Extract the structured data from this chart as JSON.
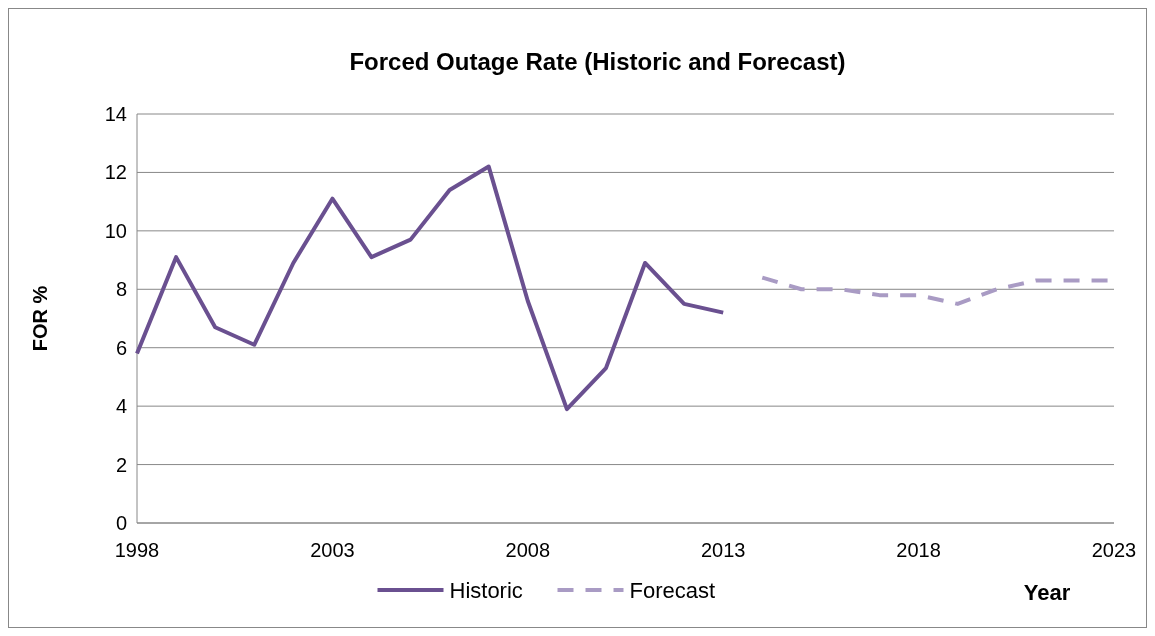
{
  "chart_data": {
    "type": "line",
    "title": "Forced Outage Rate (Historic and Forecast)",
    "xlabel": "Year",
    "ylabel": "FOR  %",
    "xlim": [
      1998,
      2023
    ],
    "xticks": [
      1998,
      2003,
      2008,
      2013,
      2018,
      2023
    ],
    "ylim": [
      0,
      14
    ],
    "yticks": [
      0,
      2,
      4,
      6,
      8,
      10,
      12,
      14
    ],
    "grid": "y",
    "legend": "bottom",
    "series": [
      {
        "name": "Historic",
        "color": "#6a5090",
        "line_style": "solid",
        "x": [
          1998,
          1999,
          2000,
          2001,
          2002,
          2003,
          2004,
          2005,
          2006,
          2007,
          2008,
          2009,
          2010,
          2011,
          2012,
          2013
        ],
        "values": [
          5.8,
          9.1,
          6.7,
          6.1,
          8.9,
          11.1,
          9.1,
          9.7,
          11.4,
          12.2,
          7.6,
          3.9,
          5.3,
          8.9,
          7.5,
          7.2
        ]
      },
      {
        "name": "Forecast",
        "color": "#a99bc4",
        "line_style": "dashed",
        "x": [
          2014,
          2015,
          2016,
          2017,
          2018,
          2019,
          2020,
          2021,
          2022,
          2023
        ],
        "values": [
          8.4,
          8.0,
          8.0,
          7.8,
          7.8,
          7.5,
          8.0,
          8.3,
          8.3,
          8.3
        ]
      }
    ]
  }
}
